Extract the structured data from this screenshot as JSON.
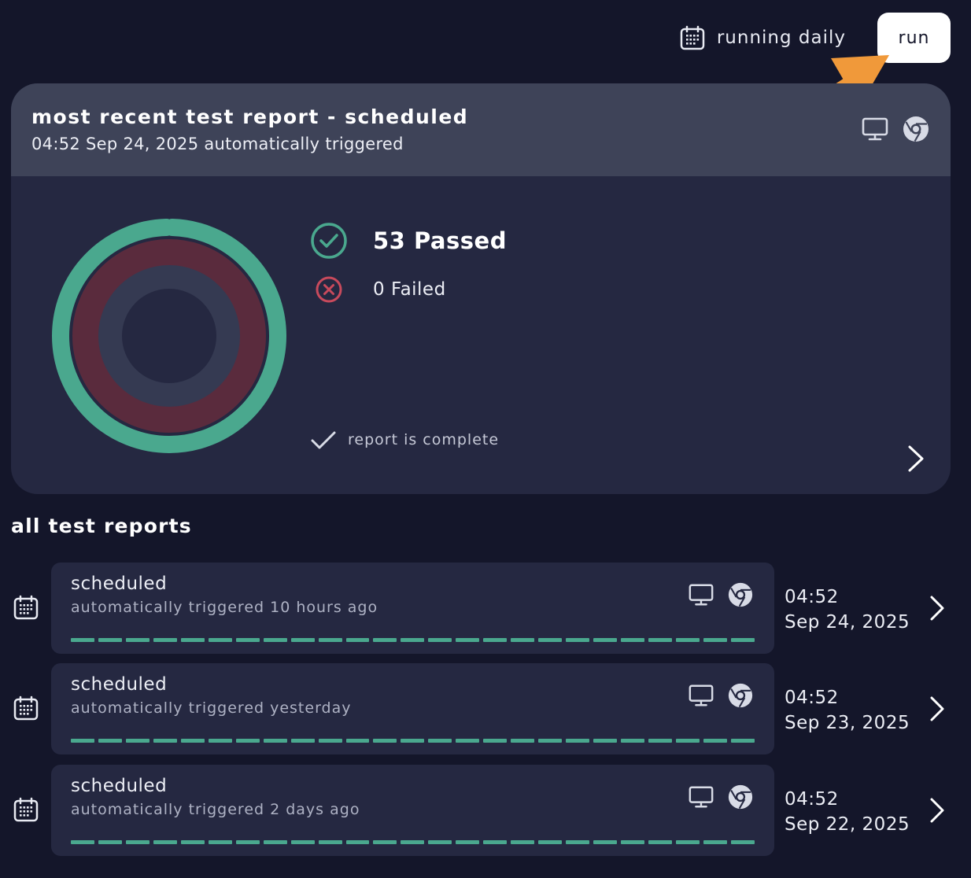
{
  "header": {
    "schedule_label": "running daily",
    "run_label": "run",
    "icons": [
      "calendar-icon"
    ]
  },
  "latest_report": {
    "title": "most recent test report - scheduled",
    "subtitle": "04:52 Sep 24, 2025 automatically triggered",
    "passed_label": "53 Passed",
    "failed_label": "0 Failed",
    "status_label": "report is complete",
    "passed_count": 53,
    "failed_count": 0,
    "icons": [
      "desktop-icon",
      "chrome-icon",
      "check-circle-icon",
      "x-circle-icon",
      "checkmark-icon",
      "chevron-right-icon"
    ]
  },
  "colors": {
    "background": "#14162a",
    "card": "#252841",
    "card_header": "#3e4358",
    "passed": "#4aa88e",
    "failed": "#c84a5c",
    "failed_ring": "#5a2b3d",
    "inner_ring": "#353a52",
    "accent_arrow": "#f0993a"
  },
  "reports_section": {
    "title": "all test reports",
    "items": [
      {
        "title": "scheduled",
        "subtitle": "automatically triggered 10 hours ago",
        "time": "04:52",
        "date": "Sep 24, 2025",
        "progress": 1.0
      },
      {
        "title": "scheduled",
        "subtitle": "automatically triggered yesterday",
        "time": "04:52",
        "date": "Sep 23, 2025",
        "progress": 1.0
      },
      {
        "title": "scheduled",
        "subtitle": "automatically triggered 2 days ago",
        "time": "04:52",
        "date": "Sep 22, 2025",
        "progress": 1.0
      }
    ]
  }
}
